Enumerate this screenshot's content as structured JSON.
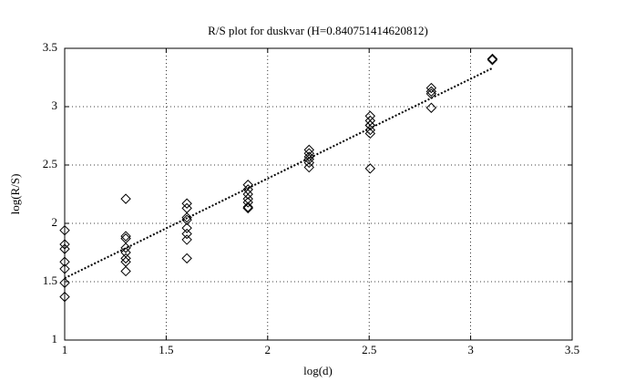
{
  "chart_data": {
    "type": "scatter",
    "title": "R/S plot for duskvar (H=0.840751414620812)",
    "xlabel": "log(d)",
    "ylabel": "log(R/S)",
    "xlim": [
      1,
      3.5
    ],
    "ylim": [
      1,
      3.5
    ],
    "xticks": [
      1,
      1.5,
      2,
      2.5,
      3,
      3.5
    ],
    "yticks": [
      1,
      1.5,
      2,
      2.5,
      3,
      3.5
    ],
    "grid": true,
    "series": [
      {
        "type": "scatter",
        "marker": "diamond",
        "color": "#000000",
        "x": [
          1,
          1,
          1,
          1,
          1,
          1,
          1,
          1.301,
          1.301,
          1.301,
          1.301,
          1.301,
          1.301,
          1.301,
          1.301,
          1.602,
          1.602,
          1.602,
          1.602,
          1.602,
          1.602,
          1.602,
          1.602,
          1.903,
          1.903,
          1.903,
          1.903,
          1.903,
          1.903,
          1.903,
          2.204,
          2.204,
          2.204,
          2.204,
          2.204,
          2.204,
          2.505,
          2.505,
          2.505,
          2.505,
          2.505,
          2.505,
          2.505,
          2.806,
          2.806,
          2.806,
          2.806,
          3.107,
          3.107
        ],
        "values": [
          1.94,
          1.82,
          1.78,
          1.67,
          1.61,
          1.49,
          1.37,
          2.21,
          1.89,
          1.87,
          1.79,
          1.75,
          1.7,
          1.67,
          1.59,
          2.17,
          2.13,
          2.05,
          2.03,
          1.96,
          1.91,
          1.86,
          1.7,
          2.33,
          2.29,
          2.25,
          2.21,
          2.18,
          2.14,
          2.13,
          2.63,
          2.6,
          2.57,
          2.55,
          2.52,
          2.48,
          2.92,
          2.88,
          2.84,
          2.84,
          2.8,
          2.77,
          2.47,
          3.16,
          3.13,
          3.11,
          2.99,
          3.41,
          3.4
        ]
      },
      {
        "type": "line",
        "linestyle": "dotted",
        "color": "#000000",
        "x": [
          1,
          3.107
        ],
        "values": [
          1.53,
          3.33
        ]
      }
    ]
  }
}
